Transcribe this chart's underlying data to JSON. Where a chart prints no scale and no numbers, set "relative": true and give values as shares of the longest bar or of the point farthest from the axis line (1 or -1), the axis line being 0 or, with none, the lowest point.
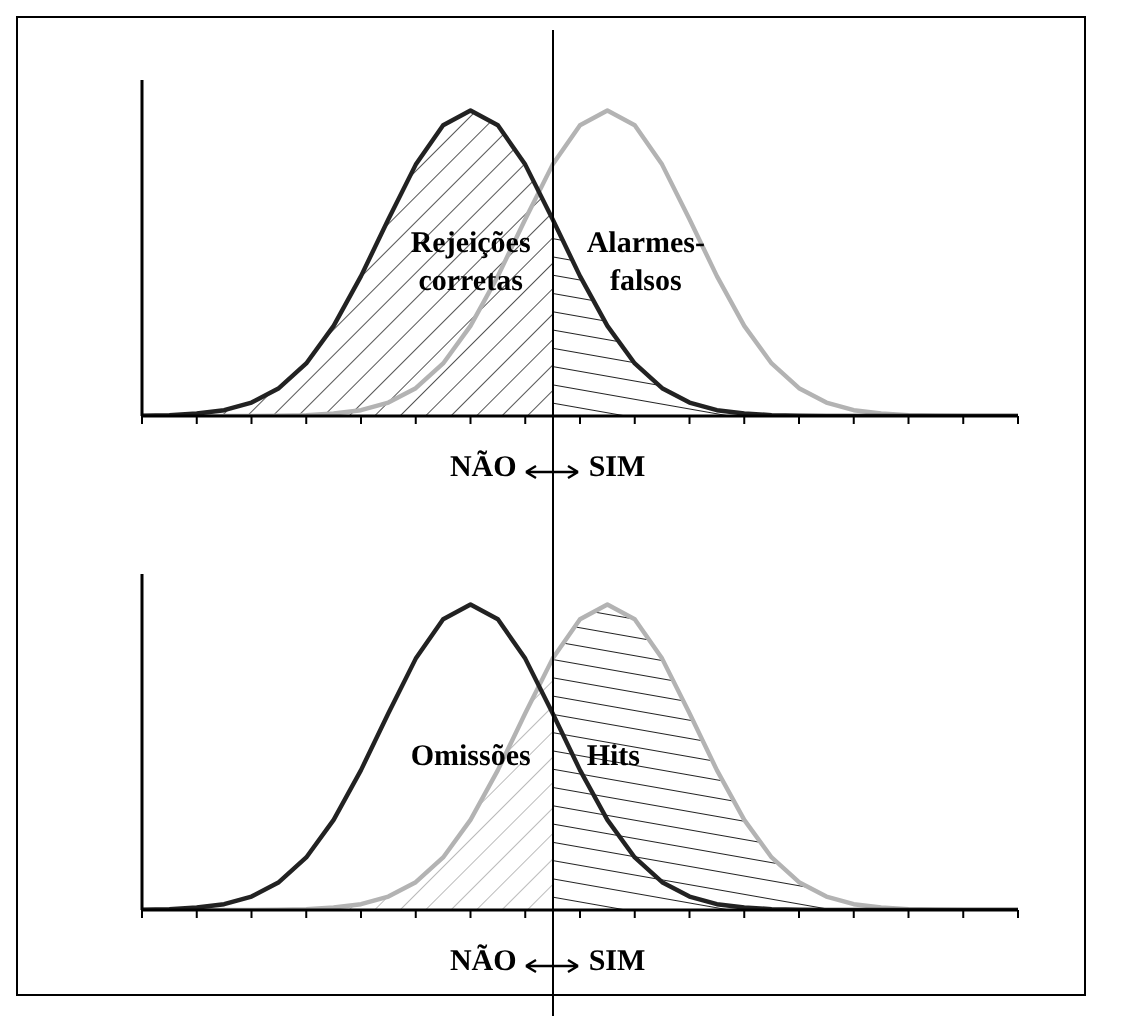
{
  "chart_data": [
    {
      "type": "line",
      "relative": true,
      "legend": false,
      "grid": false,
      "categories": [
        null,
        null,
        null,
        null,
        null,
        null,
        null,
        null,
        null,
        null,
        null,
        null,
        null,
        null,
        null,
        null,
        null,
        null,
        null,
        null,
        null,
        null,
        null,
        null,
        null,
        null,
        null,
        null,
        null,
        null,
        null,
        null,
        null
      ],
      "series": [
        {
          "type": "area",
          "color": "#555555",
          "values": [
            0.001,
            0.003,
            0.008,
            0.019,
            0.044,
            0.091,
            0.172,
            0.295,
            0.458,
            0.644,
            0.823,
            0.952,
            1,
            0.952,
            0.823,
            0.644,
            null,
            null,
            null,
            null,
            null,
            null,
            null,
            null,
            null,
            null,
            null,
            null,
            null,
            null,
            null,
            null,
            null
          ]
        },
        {
          "type": "area",
          "color": "#222222",
          "values": [
            null,
            null,
            null,
            null,
            null,
            null,
            null,
            null,
            null,
            null,
            null,
            null,
            null,
            null,
            null,
            0.644,
            0.458,
            0.295,
            0.172,
            0.091,
            0.044,
            0.019,
            0.008,
            0.003,
            0.001,
            0,
            0,
            0,
            0,
            0,
            0,
            0,
            0
          ]
        },
        {
          "color": "#b3b3b3",
          "values": [
            0,
            0,
            0,
            0,
            0,
            0.001,
            0.003,
            0.008,
            0.019,
            0.044,
            0.091,
            0.172,
            0.295,
            0.458,
            0.644,
            0.823,
            0.952,
            1,
            0.952,
            0.823,
            0.644,
            0.458,
            0.295,
            0.172,
            0.091,
            0.044,
            0.019,
            0.008,
            0.003,
            0.001,
            0,
            0,
            0
          ]
        },
        {
          "color": "#222222",
          "values": [
            0.001,
            0.003,
            0.008,
            0.019,
            0.044,
            0.091,
            0.172,
            0.295,
            0.458,
            0.644,
            0.823,
            0.952,
            1,
            0.952,
            0.823,
            0.644,
            0.458,
            0.295,
            0.172,
            0.091,
            0.044,
            0.019,
            0.008,
            0.003,
            0.001,
            0,
            0,
            0,
            0,
            0,
            0,
            0,
            0
          ]
        }
      ],
      "annotations": [
        "Rejeições\ncorretas",
        "Alarmes-\nfalsos",
        "NÃO",
        "SIM"
      ]
    },
    {
      "type": "line",
      "relative": true,
      "legend": false,
      "grid": false,
      "categories": [
        null,
        null,
        null,
        null,
        null,
        null,
        null,
        null,
        null,
        null,
        null,
        null,
        null,
        null,
        null,
        null,
        null,
        null,
        null,
        null,
        null,
        null,
        null,
        null,
        null,
        null,
        null,
        null,
        null,
        null,
        null,
        null,
        null
      ],
      "series": [
        {
          "type": "area",
          "color": "#bbbbbb",
          "values": [
            0,
            0,
            0,
            0,
            0,
            0.001,
            0.003,
            0.008,
            0.019,
            0.044,
            0.091,
            0.172,
            0.295,
            0.458,
            0.644,
            0.823,
            null,
            null,
            null,
            null,
            null,
            null,
            null,
            null,
            null,
            null,
            null,
            null,
            null,
            null,
            null,
            null,
            null
          ]
        },
        {
          "type": "area",
          "color": "#222222",
          "values": [
            null,
            null,
            null,
            null,
            null,
            null,
            null,
            null,
            null,
            null,
            null,
            null,
            null,
            null,
            null,
            0.823,
            0.952,
            1,
            0.952,
            0.823,
            0.644,
            0.458,
            0.295,
            0.172,
            0.091,
            0.044,
            0.019,
            0.008,
            0.003,
            0.001,
            0,
            0,
            0
          ]
        },
        {
          "color": "#b3b3b3",
          "values": [
            0,
            0,
            0,
            0,
            0,
            0.001,
            0.003,
            0.008,
            0.019,
            0.044,
            0.091,
            0.172,
            0.295,
            0.458,
            0.644,
            0.823,
            0.952,
            1,
            0.952,
            0.823,
            0.644,
            0.458,
            0.295,
            0.172,
            0.091,
            0.044,
            0.019,
            0.008,
            0.003,
            0.001,
            0,
            0,
            0
          ]
        },
        {
          "color": "#222222",
          "values": [
            0.001,
            0.003,
            0.008,
            0.019,
            0.044,
            0.091,
            0.172,
            0.295,
            0.458,
            0.644,
            0.823,
            0.952,
            1,
            0.952,
            0.823,
            0.644,
            0.458,
            0.295,
            0.172,
            0.091,
            0.044,
            0.019,
            0.008,
            0.003,
            0.001,
            0,
            0,
            0,
            0,
            0,
            0,
            0,
            0
          ]
        }
      ],
      "annotations": [
        "Omissões",
        "Hits",
        "NÃO",
        "SIM"
      ]
    }
  ]
}
